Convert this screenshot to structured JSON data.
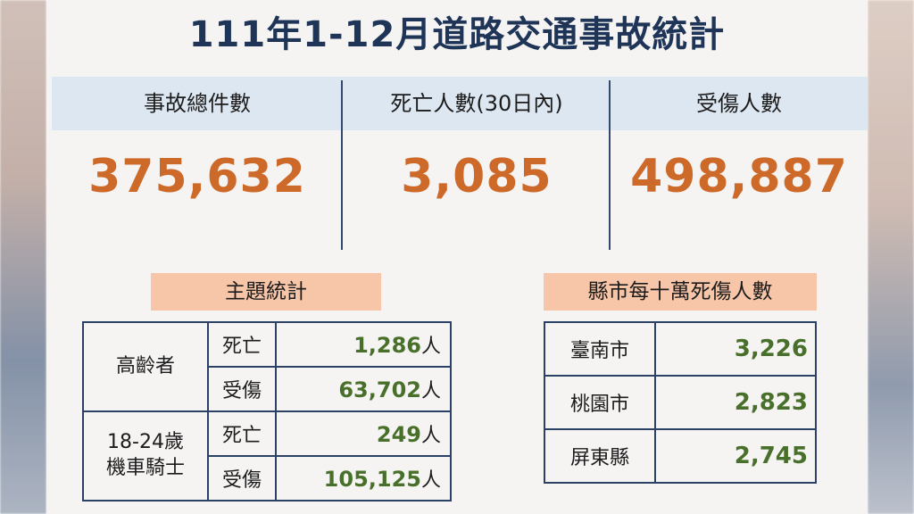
{
  "title": "111年1-12月道路交通事故統計",
  "stats": [
    {
      "label": "事故總件數",
      "value": "375,632"
    },
    {
      "label": "死亡人數(30日內)",
      "value": "3,085"
    },
    {
      "label": "受傷人數",
      "value": "498,887"
    }
  ],
  "topic": {
    "label": "主題統計",
    "groups": [
      {
        "name": "高齡者",
        "rows": [
          {
            "type": "死亡",
            "value": "1,286",
            "unit": "人"
          },
          {
            "type": "受傷",
            "value": "63,702",
            "unit": "人"
          }
        ]
      },
      {
        "name_line1": "18-24歲",
        "name_line2": "機車騎士",
        "rows": [
          {
            "type": "死亡",
            "value": "249",
            "unit": "人"
          },
          {
            "type": "受傷",
            "value": "105,125",
            "unit": "人"
          }
        ]
      }
    ]
  },
  "county": {
    "label": "縣市每十萬死傷人數",
    "rows": [
      {
        "city": "臺南市",
        "value": "3,226"
      },
      {
        "city": "桃園市",
        "value": "2,823"
      },
      {
        "city": "屏東縣",
        "value": "2,745"
      }
    ]
  },
  "colors": {
    "title": "#1f3558",
    "big_number": "#cd6a2a",
    "table_number": "#49702a",
    "header_band": "#dde7f1",
    "section_label": "#f7c5a8"
  }
}
